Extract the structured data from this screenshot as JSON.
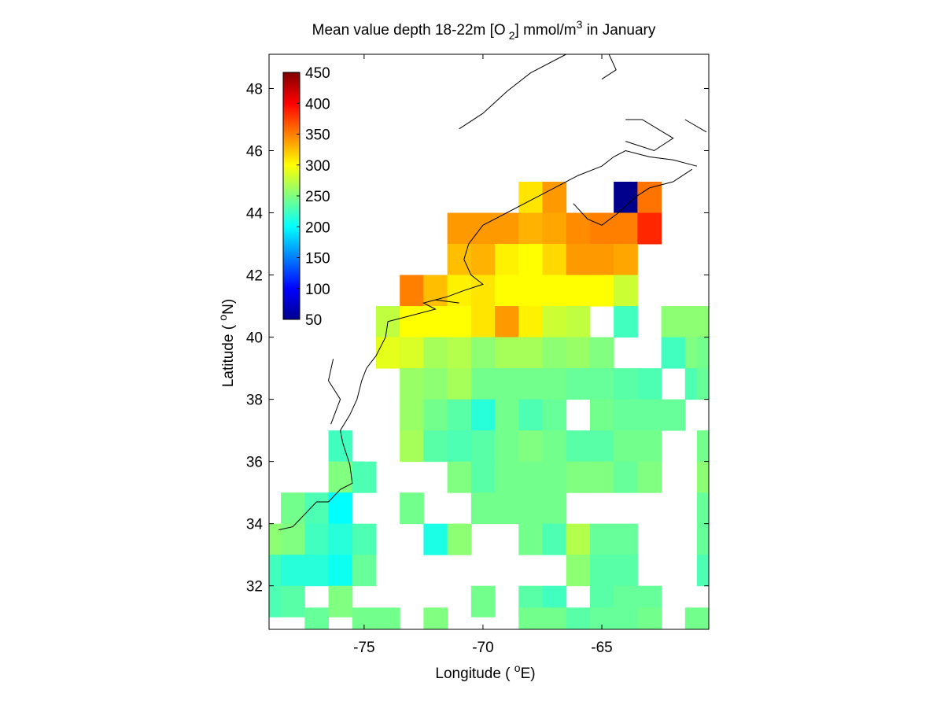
{
  "title": {
    "prefix": "Mean value depth 18-22m [O",
    "sub": "2",
    "middle": "] mmol/m",
    "sup": "3",
    "suffix": " in January"
  },
  "xlabel": {
    "prefix": "Longitude ( ",
    "sup": "o",
    "suffix": "E)"
  },
  "ylabel": {
    "prefix": "Latitude ( ",
    "sup": "o",
    "suffix": "N)"
  },
  "colorbar": {
    "colormap": "jet",
    "range": [
      50,
      450
    ],
    "ticks": [
      "450",
      "400",
      "350",
      "300",
      "250",
      "200",
      "150",
      "100",
      "50"
    ]
  },
  "chart_data": {
    "type": "heatmap",
    "variable": "Mean O2 concentration at 18-22 m depth, January",
    "units": "mmol/m3",
    "xlim": [
      -79,
      -60.5
    ],
    "ylim": [
      30.6,
      49.1
    ],
    "xticks": [
      -75,
      -70,
      -65
    ],
    "yticks": [
      32,
      34,
      36,
      38,
      40,
      42,
      44,
      46,
      48
    ],
    "xtick_labels": [
      "-75",
      "-70",
      "-65"
    ],
    "ytick_labels": [
      "32",
      "34",
      "36",
      "38",
      "40",
      "42",
      "44",
      "46",
      "48"
    ],
    "cell_size_deg": 1,
    "color_range": [
      50,
      450
    ],
    "grid": false,
    "cells": [
      {
        "lon": -68,
        "lat": 44.5,
        "v": 310
      },
      {
        "lon": -67,
        "lat": 44.5,
        "v": 340
      },
      {
        "lon": -64,
        "lat": 44.5,
        "v": 55
      },
      {
        "lon": -63,
        "lat": 44.5,
        "v": 355
      },
      {
        "lon": -71,
        "lat": 43.5,
        "v": 340
      },
      {
        "lon": -70,
        "lat": 43.5,
        "v": 340
      },
      {
        "lon": -69,
        "lat": 43.5,
        "v": 340
      },
      {
        "lon": -68,
        "lat": 43.5,
        "v": 330
      },
      {
        "lon": -67,
        "lat": 43.5,
        "v": 335
      },
      {
        "lon": -66,
        "lat": 43.5,
        "v": 345
      },
      {
        "lon": -65,
        "lat": 43.5,
        "v": 350
      },
      {
        "lon": -64,
        "lat": 43.5,
        "v": 350
      },
      {
        "lon": -63,
        "lat": 43.5,
        "v": 385
      },
      {
        "lon": -71,
        "lat": 42.5,
        "v": 325
      },
      {
        "lon": -70,
        "lat": 42.5,
        "v": 330
      },
      {
        "lon": -69,
        "lat": 42.5,
        "v": 305
      },
      {
        "lon": -68,
        "lat": 42.5,
        "v": 300
      },
      {
        "lon": -67,
        "lat": 42.5,
        "v": 315
      },
      {
        "lon": -66,
        "lat": 42.5,
        "v": 340
      },
      {
        "lon": -65,
        "lat": 42.5,
        "v": 340
      },
      {
        "lon": -64,
        "lat": 42.5,
        "v": 335
      },
      {
        "lon": -73,
        "lat": 41.5,
        "v": 350
      },
      {
        "lon": -72,
        "lat": 41.5,
        "v": 325
      },
      {
        "lon": -71,
        "lat": 41.5,
        "v": 305
      },
      {
        "lon": -70,
        "lat": 41.5,
        "v": 310
      },
      {
        "lon": -69,
        "lat": 41.5,
        "v": 300
      },
      {
        "lon": -68,
        "lat": 41.5,
        "v": 300
      },
      {
        "lon": -67,
        "lat": 41.5,
        "v": 300
      },
      {
        "lon": -66,
        "lat": 41.5,
        "v": 300
      },
      {
        "lon": -65,
        "lat": 41.5,
        "v": 300
      },
      {
        "lon": -64,
        "lat": 41.5,
        "v": 280
      },
      {
        "lon": -74,
        "lat": 40.5,
        "v": 275
      },
      {
        "lon": -73,
        "lat": 40.5,
        "v": 300
      },
      {
        "lon": -72,
        "lat": 40.5,
        "v": 300
      },
      {
        "lon": -71,
        "lat": 40.5,
        "v": 300
      },
      {
        "lon": -70,
        "lat": 40.5,
        "v": 310
      },
      {
        "lon": -69,
        "lat": 40.5,
        "v": 340
      },
      {
        "lon": -68,
        "lat": 40.5,
        "v": 305
      },
      {
        "lon": -67,
        "lat": 40.5,
        "v": 280
      },
      {
        "lon": -66,
        "lat": 40.5,
        "v": 275
      },
      {
        "lon": -64,
        "lat": 40.5,
        "v": 225
      },
      {
        "lon": -62,
        "lat": 40.5,
        "v": 255
      },
      {
        "lon": -61,
        "lat": 40.5,
        "v": 255
      },
      {
        "lon": -74,
        "lat": 39.5,
        "v": 290
      },
      {
        "lon": -73,
        "lat": 39.5,
        "v": 285
      },
      {
        "lon": -72,
        "lat": 39.5,
        "v": 265
      },
      {
        "lon": -71,
        "lat": 39.5,
        "v": 270
      },
      {
        "lon": -70,
        "lat": 39.5,
        "v": 255
      },
      {
        "lon": -69,
        "lat": 39.5,
        "v": 265
      },
      {
        "lon": -68,
        "lat": 39.5,
        "v": 265
      },
      {
        "lon": -67,
        "lat": 39.5,
        "v": 255
      },
      {
        "lon": -66,
        "lat": 39.5,
        "v": 260
      },
      {
        "lon": -65,
        "lat": 39.5,
        "v": 250
      },
      {
        "lon": -62,
        "lat": 39.5,
        "v": 225
      },
      {
        "lon": -61,
        "lat": 39.5,
        "v": 250
      },
      {
        "lon": -60.5,
        "lat": 39.5,
        "v": 245
      },
      {
        "lon": -73,
        "lat": 38.5,
        "v": 260
      },
      {
        "lon": -72,
        "lat": 38.5,
        "v": 255
      },
      {
        "lon": -71,
        "lat": 38.5,
        "v": 265
      },
      {
        "lon": -70,
        "lat": 38.5,
        "v": 245
      },
      {
        "lon": -69,
        "lat": 38.5,
        "v": 245
      },
      {
        "lon": -68,
        "lat": 38.5,
        "v": 245
      },
      {
        "lon": -67,
        "lat": 38.5,
        "v": 245
      },
      {
        "lon": -66,
        "lat": 38.5,
        "v": 240
      },
      {
        "lon": -65,
        "lat": 38.5,
        "v": 240
      },
      {
        "lon": -64,
        "lat": 38.5,
        "v": 235
      },
      {
        "lon": -63,
        "lat": 38.5,
        "v": 230
      },
      {
        "lon": -61,
        "lat": 38.5,
        "v": 230
      },
      {
        "lon": -60.5,
        "lat": 38.5,
        "v": 240
      },
      {
        "lon": -73,
        "lat": 37.5,
        "v": 260
      },
      {
        "lon": -72,
        "lat": 37.5,
        "v": 245
      },
      {
        "lon": -71,
        "lat": 37.5,
        "v": 235
      },
      {
        "lon": -70,
        "lat": 37.5,
        "v": 215
      },
      {
        "lon": -69,
        "lat": 37.5,
        "v": 245
      },
      {
        "lon": -68,
        "lat": 37.5,
        "v": 230
      },
      {
        "lon": -67,
        "lat": 37.5,
        "v": 240
      },
      {
        "lon": -65,
        "lat": 37.5,
        "v": 245
      },
      {
        "lon": -64,
        "lat": 37.5,
        "v": 240
      },
      {
        "lon": -63,
        "lat": 37.5,
        "v": 240
      },
      {
        "lon": -62,
        "lat": 37.5,
        "v": 240
      },
      {
        "lon": -76,
        "lat": 36.5,
        "v": 225
      },
      {
        "lon": -73,
        "lat": 36.5,
        "v": 265
      },
      {
        "lon": -72,
        "lat": 36.5,
        "v": 235
      },
      {
        "lon": -71,
        "lat": 36.5,
        "v": 230
      },
      {
        "lon": -70,
        "lat": 36.5,
        "v": 235
      },
      {
        "lon": -69,
        "lat": 36.5,
        "v": 245
      },
      {
        "lon": -68,
        "lat": 36.5,
        "v": 250
      },
      {
        "lon": -67,
        "lat": 36.5,
        "v": 245
      },
      {
        "lon": -66,
        "lat": 36.5,
        "v": 235
      },
      {
        "lon": -65,
        "lat": 36.5,
        "v": 235
      },
      {
        "lon": -64,
        "lat": 36.5,
        "v": 245
      },
      {
        "lon": -63,
        "lat": 36.5,
        "v": 245
      },
      {
        "lon": -60.5,
        "lat": 36.5,
        "v": 245
      },
      {
        "lon": -75.5,
        "lat": 35.5,
        "v": 205
      },
      {
        "lon": -76,
        "lat": 35.5,
        "v": 250
      },
      {
        "lon": -75,
        "lat": 35.5,
        "v": 230
      },
      {
        "lon": -71,
        "lat": 35.5,
        "v": 250
      },
      {
        "lon": -70,
        "lat": 35.5,
        "v": 235
      },
      {
        "lon": -69,
        "lat": 35.5,
        "v": 245
      },
      {
        "lon": -68,
        "lat": 35.5,
        "v": 245
      },
      {
        "lon": -67,
        "lat": 35.5,
        "v": 245
      },
      {
        "lon": -66,
        "lat": 35.5,
        "v": 250
      },
      {
        "lon": -65,
        "lat": 35.5,
        "v": 250
      },
      {
        "lon": -64,
        "lat": 35.5,
        "v": 240
      },
      {
        "lon": -63,
        "lat": 35.5,
        "v": 250
      },
      {
        "lon": -60.5,
        "lat": 35.5,
        "v": 255
      },
      {
        "lon": -78,
        "lat": 34.5,
        "v": 245
      },
      {
        "lon": -77,
        "lat": 34.5,
        "v": 230
      },
      {
        "lon": -76,
        "lat": 34.5,
        "v": 200
      },
      {
        "lon": -73,
        "lat": 34.5,
        "v": 245
      },
      {
        "lon": -70,
        "lat": 34.5,
        "v": 245
      },
      {
        "lon": -69,
        "lat": 34.5,
        "v": 245
      },
      {
        "lon": -68,
        "lat": 34.5,
        "v": 245
      },
      {
        "lon": -67,
        "lat": 34.5,
        "v": 245
      },
      {
        "lon": -60.5,
        "lat": 34.5,
        "v": 240
      },
      {
        "lon": -79,
        "lat": 33.5,
        "v": 255
      },
      {
        "lon": -78,
        "lat": 33.5,
        "v": 250
      },
      {
        "lon": -77,
        "lat": 33.5,
        "v": 225
      },
      {
        "lon": -76,
        "lat": 33.5,
        "v": 215
      },
      {
        "lon": -75,
        "lat": 33.5,
        "v": 230
      },
      {
        "lon": -72,
        "lat": 33.5,
        "v": 210
      },
      {
        "lon": -71,
        "lat": 33.5,
        "v": 255
      },
      {
        "lon": -68,
        "lat": 33.5,
        "v": 245
      },
      {
        "lon": -67,
        "lat": 33.5,
        "v": 230
      },
      {
        "lon": -66,
        "lat": 33.5,
        "v": 270
      },
      {
        "lon": -65,
        "lat": 33.5,
        "v": 240
      },
      {
        "lon": -64,
        "lat": 33.5,
        "v": 240
      },
      {
        "lon": -60.5,
        "lat": 33.5,
        "v": 240
      },
      {
        "lon": -79,
        "lat": 32.5,
        "v": 225
      },
      {
        "lon": -78,
        "lat": 32.5,
        "v": 215
      },
      {
        "lon": -77,
        "lat": 32.5,
        "v": 215
      },
      {
        "lon": -76,
        "lat": 32.5,
        "v": 205
      },
      {
        "lon": -75,
        "lat": 32.5,
        "v": 240
      },
      {
        "lon": -66,
        "lat": 32.5,
        "v": 255
      },
      {
        "lon": -65,
        "lat": 32.5,
        "v": 235
      },
      {
        "lon": -64,
        "lat": 32.5,
        "v": 235
      },
      {
        "lon": -60.5,
        "lat": 32.5,
        "v": 230
      },
      {
        "lon": -79,
        "lat": 31.5,
        "v": 230
      },
      {
        "lon": -78,
        "lat": 31.5,
        "v": 235
      },
      {
        "lon": -76,
        "lat": 31.5,
        "v": 250
      },
      {
        "lon": -70,
        "lat": 31.5,
        "v": 245
      },
      {
        "lon": -68,
        "lat": 31.5,
        "v": 235
      },
      {
        "lon": -67,
        "lat": 31.5,
        "v": 225
      },
      {
        "lon": -65,
        "lat": 31.5,
        "v": 235
      },
      {
        "lon": -64,
        "lat": 31.5,
        "v": 240
      },
      {
        "lon": -63,
        "lat": 31.5,
        "v": 240
      },
      {
        "lon": -77,
        "lat": 30.8,
        "v": 240
      },
      {
        "lon": -75,
        "lat": 30.8,
        "v": 245
      },
      {
        "lon": -74,
        "lat": 30.8,
        "v": 245
      },
      {
        "lon": -72,
        "lat": 30.8,
        "v": 250
      },
      {
        "lon": -68,
        "lat": 30.8,
        "v": 245
      },
      {
        "lon": -67,
        "lat": 30.8,
        "v": 245
      },
      {
        "lon": -66,
        "lat": 30.8,
        "v": 235
      },
      {
        "lon": -65,
        "lat": 30.8,
        "v": 240
      },
      {
        "lon": -64,
        "lat": 30.8,
        "v": 240
      },
      {
        "lon": -63,
        "lat": 30.8,
        "v": 245
      },
      {
        "lon": -61,
        "lat": 30.8,
        "v": 245
      }
    ],
    "coastline": [
      [
        [
          -78.6,
          33.8
        ],
        [
          -78.0,
          33.9
        ],
        [
          -77.5,
          34.3
        ],
        [
          -77.0,
          34.7
        ],
        [
          -76.5,
          34.7
        ],
        [
          -76.0,
          35.1
        ],
        [
          -75.5,
          35.3
        ],
        [
          -75.6,
          35.9
        ],
        [
          -75.9,
          36.6
        ],
        [
          -76.0,
          37.0
        ],
        [
          -75.6,
          37.5
        ],
        [
          -75.3,
          38.0
        ],
        [
          -75.1,
          38.6
        ],
        [
          -74.9,
          39.0
        ],
        [
          -74.5,
          39.4
        ],
        [
          -74.1,
          40.0
        ],
        [
          -74.0,
          40.5
        ],
        [
          -73.5,
          40.6
        ],
        [
          -72.0,
          40.9
        ],
        [
          -72.5,
          41.1
        ],
        [
          -71.5,
          41.3
        ],
        [
          -70.8,
          41.5
        ],
        [
          -70.0,
          41.7
        ],
        [
          -70.5,
          42.0
        ],
        [
          -70.8,
          42.5
        ],
        [
          -70.6,
          43.0
        ],
        [
          -70.0,
          43.6
        ],
        [
          -69.0,
          44.0
        ],
        [
          -68.0,
          44.4
        ],
        [
          -67.0,
          44.8
        ],
        [
          -66.0,
          45.2
        ],
        [
          -65.0,
          45.5
        ],
        [
          -64.5,
          45.8
        ],
        [
          -64.0,
          46.0
        ],
        [
          -63.0,
          45.8
        ],
        [
          -62.0,
          45.7
        ],
        [
          -61.0,
          45.5
        ]
      ],
      [
        [
          -66.2,
          44.3
        ],
        [
          -65.6,
          43.8
        ],
        [
          -65.0,
          43.6
        ],
        [
          -64.3,
          44.0
        ],
        [
          -63.6,
          44.5
        ],
        [
          -63.0,
          44.8
        ],
        [
          -62.0,
          45.0
        ],
        [
          -61.2,
          45.4
        ]
      ],
      [
        [
          -71.0,
          46.7
        ],
        [
          -70.0,
          47.2
        ],
        [
          -69.0,
          47.9
        ],
        [
          -68.0,
          48.5
        ],
        [
          -66.5,
          49.1
        ]
      ],
      [
        [
          -65.0,
          48.3
        ],
        [
          -64.4,
          48.6
        ],
        [
          -64.7,
          49.1
        ]
      ],
      [
        [
          -64.0,
          47.0
        ],
        [
          -63.3,
          47.0
        ],
        [
          -62.0,
          46.4
        ],
        [
          -62.8,
          46.0
        ],
        [
          -64.0,
          46.3
        ]
      ],
      [
        [
          -61.5,
          47.0
        ],
        [
          -60.6,
          46.6
        ]
      ],
      [
        [
          -76.3,
          39.3
        ],
        [
          -76.5,
          38.6
        ],
        [
          -76.0,
          38.0
        ],
        [
          -76.4,
          37.2
        ]
      ],
      [
        [
          -72.0,
          41.2
        ],
        [
          -71.0,
          41.1
        ]
      ]
    ]
  }
}
